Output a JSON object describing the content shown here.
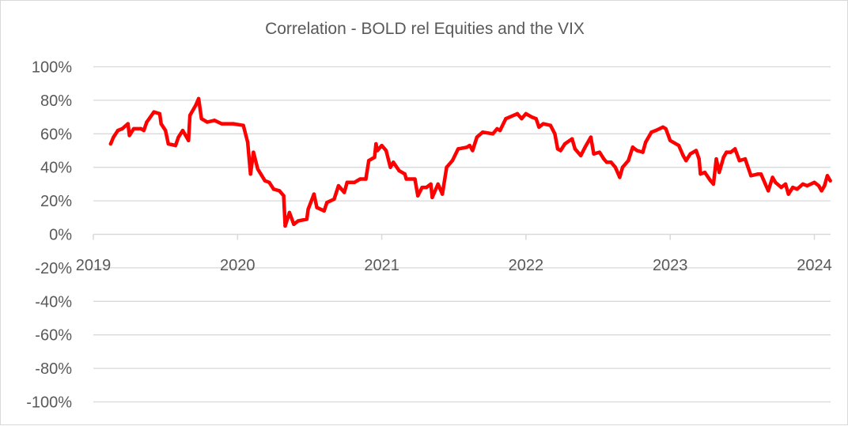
{
  "chart_data": {
    "type": "line",
    "title": "Correlation - BOLD rel  Equities and the VIX",
    "xlabel": "",
    "ylabel": "",
    "ylim": [
      -100,
      100
    ],
    "xlim": [
      2019,
      2024.11
    ],
    "y_ticks": [
      100,
      80,
      60,
      40,
      20,
      0,
      -20,
      -40,
      -60,
      -80,
      -100
    ],
    "y_tick_labels": [
      "100%",
      "80%",
      "60%",
      "40%",
      "20%",
      "0%",
      "-20%",
      "-40%",
      "-60%",
      "-80%",
      "-100%"
    ],
    "x_ticks": [
      2019,
      2020,
      2021,
      2022,
      2023,
      2024
    ],
    "x_tick_labels": [
      "2019",
      "2020",
      "2021",
      "2022",
      "2023",
      "2024"
    ],
    "grid": true,
    "series": [
      {
        "name": "Correlation",
        "color": "#FF0000",
        "x": [
          2019.12,
          2019.14,
          2019.17,
          2019.2,
          2019.24,
          2019.25,
          2019.28,
          2019.33,
          2019.35,
          2019.37,
          2019.42,
          2019.46,
          2019.47,
          2019.5,
          2019.52,
          2019.57,
          2019.59,
          2019.62,
          2019.66,
          2019.67,
          2019.71,
          2019.73,
          2019.75,
          2019.79,
          2019.84,
          2019.89,
          2019.97,
          2020.04,
          2020.07,
          2020.09,
          2020.11,
          2020.14,
          2020.19,
          2020.22,
          2020.25,
          2020.29,
          2020.32,
          2020.33,
          2020.36,
          2020.39,
          2020.42,
          2020.48,
          2020.49,
          2020.53,
          2020.55,
          2020.6,
          2020.62,
          2020.67,
          2020.7,
          2020.74,
          2020.76,
          2020.81,
          2020.85,
          2020.89,
          2020.91,
          2020.95,
          2020.96,
          2020.97,
          2021.0,
          2021.03,
          2021.06,
          2021.08,
          2021.12,
          2021.16,
          2021.17,
          2021.23,
          2021.25,
          2021.28,
          2021.31,
          2021.34,
          2021.35,
          2021.39,
          2021.42,
          2021.45,
          2021.49,
          2021.53,
          2021.59,
          2021.61,
          2021.63,
          2021.66,
          2021.7,
          2021.77,
          2021.8,
          2021.82,
          2021.86,
          2021.94,
          2021.97,
          2022.0,
          2022.04,
          2022.07,
          2022.09,
          2022.12,
          2022.17,
          2022.2,
          2022.22,
          2022.24,
          2022.27,
          2022.32,
          2022.34,
          2022.38,
          2022.41,
          2022.45,
          2022.47,
          2022.51,
          2022.54,
          2022.56,
          2022.59,
          2022.62,
          2022.65,
          2022.67,
          2022.71,
          2022.74,
          2022.77,
          2022.81,
          2022.83,
          2022.87,
          2022.9,
          2022.95,
          2022.97,
          2023.0,
          2023.06,
          2023.09,
          2023.11,
          2023.14,
          2023.18,
          2023.2,
          2023.21,
          2023.24,
          2023.28,
          2023.3,
          2023.32,
          2023.34,
          2023.37,
          2023.39,
          2023.42,
          2023.45,
          2023.48,
          2023.52,
          2023.56,
          2023.61,
          2023.63,
          2023.66,
          2023.68,
          2023.71,
          2023.73,
          2023.77,
          2023.8,
          2023.82,
          2023.85,
          2023.88,
          2023.92,
          2023.95,
          2024.0,
          2024.03,
          2024.05,
          2024.07,
          2024.09,
          2024.11
        ],
        "y": [
          54,
          58,
          62,
          63,
          66,
          59,
          63,
          63,
          62,
          67,
          73,
          72,
          66,
          62,
          54,
          53,
          58,
          62,
          56,
          71,
          77,
          81,
          69,
          67,
          68,
          66,
          66,
          65,
          55,
          36,
          49,
          39,
          32,
          31,
          27,
          26,
          23,
          5,
          13,
          6,
          8,
          9,
          15,
          24,
          16,
          14,
          19,
          21,
          29,
          25,
          31,
          31,
          33,
          33,
          44,
          46,
          54,
          50,
          53,
          50,
          40,
          43,
          38,
          36,
          33,
          33,
          23,
          28,
          28,
          30,
          22,
          30,
          24,
          40,
          44,
          51,
          52,
          53,
          50,
          58,
          61,
          60,
          63,
          62,
          69,
          72,
          69,
          72,
          70,
          69,
          64,
          66,
          65,
          60,
          51,
          50,
          54,
          57,
          51,
          47,
          52,
          58,
          48,
          49,
          45,
          43,
          43,
          40,
          34,
          40,
          44,
          52,
          50,
          49,
          55,
          61,
          62,
          64,
          63,
          56,
          53,
          47,
          44,
          48,
          50,
          45,
          36,
          37,
          32,
          30,
          45,
          37,
          46,
          49,
          49,
          51,
          44,
          45,
          35,
          36,
          36,
          30,
          26,
          34,
          31,
          28,
          30,
          24,
          28,
          27,
          30,
          29,
          31,
          29,
          26,
          29,
          35,
          32
        ]
      }
    ]
  }
}
